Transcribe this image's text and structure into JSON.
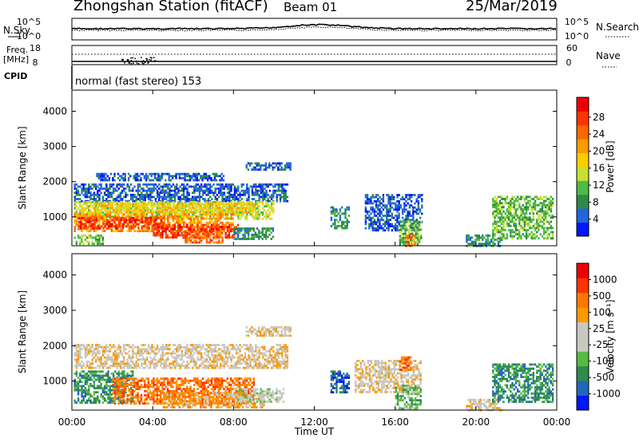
{
  "header": {
    "station": "Zhongshan Station (fitACF)",
    "beam": "Beam 01",
    "date": "25/Mar/2019"
  },
  "panels": {
    "nsky_label": "N.Sky",
    "nsearch_label": "N.Search",
    "nsky_ticks": [
      "10^5",
      "10^0"
    ],
    "nsearch_ticks": [
      "10^5",
      "10^0"
    ],
    "freq_label": "Freq.",
    "freq_unit": "[MHz]",
    "freq_ticks": [
      "18",
      "8"
    ],
    "nave_label": "Nave",
    "nave_ticks": [
      "60",
      "0"
    ],
    "cpid_label": "CPID",
    "cpid_text": "normal (fast stereo) 153"
  },
  "chart_data": [
    {
      "type": "heatmap",
      "name": "power",
      "ylabel": "Slant Range [km]",
      "yticks": [
        1000,
        2000,
        3000,
        4000
      ],
      "ylim": [
        180,
        4600
      ],
      "xlabel": "",
      "xlim": [
        0,
        24
      ],
      "colorbar": {
        "label": "Power [dB]",
        "ticks": [
          "4",
          "8",
          "12",
          "16",
          "20",
          "24",
          "28"
        ],
        "colors": [
          "#0016ff",
          "#2266dd",
          "#2f8a4a",
          "#4dbb44",
          "#c8e030",
          "#ffcc00",
          "#ff9900",
          "#ff6600",
          "#ff3300",
          "#ee0000"
        ]
      },
      "patches": [
        {
          "t": [
            0.1,
            10.7
          ],
          "r": [
            1450,
            1950
          ],
          "lvl": 1
        },
        {
          "t": [
            1.2,
            7.5
          ],
          "r": [
            2050,
            2250
          ],
          "lvl": 1
        },
        {
          "t": [
            0.1,
            10.0
          ],
          "r": [
            950,
            1450
          ],
          "lvl": 4
        },
        {
          "t": [
            1.0,
            9.2
          ],
          "r": [
            1150,
            1400
          ],
          "lvl": 5
        },
        {
          "t": [
            0.1,
            8.0
          ],
          "r": [
            600,
            1100
          ],
          "lvl": 6
        },
        {
          "t": [
            0.3,
            4.5
          ],
          "r": [
            700,
            1000
          ],
          "lvl": 8
        },
        {
          "t": [
            4.0,
            8.2
          ],
          "r": [
            400,
            800
          ],
          "lvl": 8
        },
        {
          "t": [
            5.5,
            7.5
          ],
          "r": [
            300,
            600
          ],
          "lvl": 7
        },
        {
          "t": [
            0.1,
            1.5
          ],
          "r": [
            250,
            500
          ],
          "lvl": 3
        },
        {
          "t": [
            8.0,
            10.0
          ],
          "r": [
            400,
            700
          ],
          "lvl": 2
        },
        {
          "t": [
            14.5,
            17.3
          ],
          "r": [
            600,
            1650
          ],
          "lvl": 1
        },
        {
          "t": [
            16.2,
            17.3
          ],
          "r": [
            250,
            900
          ],
          "lvl": 3
        },
        {
          "t": [
            16.5,
            17.0
          ],
          "r": [
            200,
            500
          ],
          "lvl": 7
        },
        {
          "t": [
            12.8,
            13.7
          ],
          "r": [
            700,
            1300
          ],
          "lvl": 2
        },
        {
          "t": [
            19.5,
            21.3
          ],
          "r": [
            200,
            500
          ],
          "lvl": 2
        },
        {
          "t": [
            20.8,
            23.8
          ],
          "r": [
            400,
            1600
          ],
          "lvl": 3
        },
        {
          "t": [
            8.6,
            10.8
          ],
          "r": [
            2350,
            2550
          ],
          "lvl": 1
        }
      ]
    },
    {
      "type": "heatmap",
      "name": "velocity",
      "ylabel": "Slant Range [km]",
      "yticks": [
        1000,
        2000,
        3000,
        4000
      ],
      "ylim": [
        180,
        4600
      ],
      "xlabel": "Time UT",
      "xlim": [
        0,
        24
      ],
      "xticks": [
        "00:00",
        "04:00",
        "08:00",
        "12:00",
        "16:00",
        "20:00",
        "00:00"
      ],
      "colorbar": {
        "label": "Velocity [m s⁻¹]",
        "ticks": [
          "1000",
          "500",
          "100",
          "25",
          "-25",
          "-100",
          "-500",
          "-1000"
        ],
        "colors": [
          "#0016ff",
          "#2266bb",
          "#2e8b4e",
          "#55bb44",
          "#c8c8c0",
          "#c8c8c0",
          "#ff9900",
          "#ff7700",
          "#ff3300",
          "#ee0000"
        ]
      },
      "patches": [
        {
          "t": [
            0.1,
            10.7
          ],
          "r": [
            1400,
            2050
          ],
          "lvl": 5
        },
        {
          "t": [
            0.1,
            3.0
          ],
          "r": [
            400,
            1300
          ],
          "lvl": 2
        },
        {
          "t": [
            2.0,
            9.0
          ],
          "r": [
            350,
            1100
          ],
          "lvl": 7
        },
        {
          "t": [
            4.5,
            9.5
          ],
          "r": [
            250,
            700
          ],
          "lvl": 6
        },
        {
          "t": [
            8.0,
            10.5
          ],
          "r": [
            400,
            800
          ],
          "lvl": 4
        },
        {
          "t": [
            14.0,
            17.3
          ],
          "r": [
            700,
            1600
          ],
          "lvl": 5
        },
        {
          "t": [
            16.0,
            17.3
          ],
          "r": [
            250,
            900
          ],
          "lvl": 3
        },
        {
          "t": [
            16.2,
            16.8
          ],
          "r": [
            1300,
            1700
          ],
          "lvl": 7
        },
        {
          "t": [
            12.8,
            13.7
          ],
          "r": [
            700,
            1300
          ],
          "lvl": 1
        },
        {
          "t": [
            19.5,
            21.3
          ],
          "r": [
            200,
            500
          ],
          "lvl": 5
        },
        {
          "t": [
            20.8,
            23.8
          ],
          "r": [
            400,
            1500
          ],
          "lvl": 2
        },
        {
          "t": [
            8.6,
            10.8
          ],
          "r": [
            2300,
            2550
          ],
          "lvl": 5
        }
      ]
    }
  ]
}
